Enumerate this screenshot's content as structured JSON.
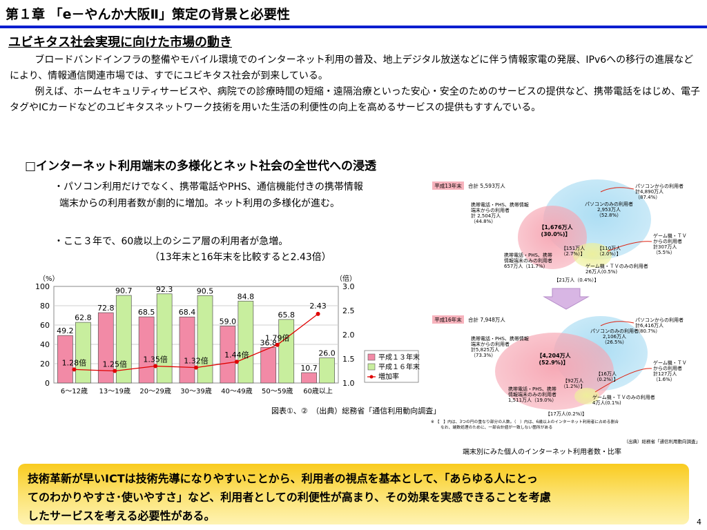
{
  "header": {
    "chapter": "第１章 「e－やんか大阪Ⅱ」策定の背景と必要性",
    "section_title": "ユビキタス社会実現に向けた市場の動き"
  },
  "intro": {
    "para1": "ブロードバンドインフラの整備やモバイル環境でのインターネット利用の普及、地上デジタル放送などに伴う情報家電の発展、IPv6への移行の進展などにより、情報通信関連市場では、すでにユビキタス社会が到来している。",
    "para2": "例えば、ホームセキュリティサービスや、病院での診療時間の短縮・遠隔治療といった安心・安全のためのサービスの提供など、携帯電話をはじめ、電子タグやICカードなどのユビキタスネットワーク技術を用いた生活の利便性の向上を高めるサービスの提供もすすんでいる。"
  },
  "subhead": "□インターネット利用端末の多様化とネット社会の全世代への浸透",
  "bullets": {
    "b1_line1": "・パソコン利用だけでなく、携帯電話やPHS、通信機能付きの携帯情報",
    "b1_line2": "端末からの利用者数が劇的に増加。ネット利用の多様化が進む。",
    "b2_line1": "・ここ３年で、60歳以上のシニア層の利用者が急増。",
    "b2_line2": "（13年末と16年末を比較すると2.43倍）"
  },
  "chart_caption": "図表①、②　（出典）総務省「通信利用動向調査」",
  "chart_data": {
    "type": "bar",
    "categories": [
      "6～12歳",
      "13～19歳",
      "20～29歳",
      "30～39歳",
      "40～49歳",
      "50～59歳",
      "60歳以上"
    ],
    "series": [
      {
        "name": "平成１３年末",
        "values": [
          49.2,
          72.8,
          68.5,
          68.4,
          59.0,
          36.8,
          10.7
        ],
        "labels": [
          "49.2",
          "72.8",
          "68.5",
          "68.4",
          "59.0",
          "36.8",
          "10.7"
        ],
        "color": "#f28aa6"
      },
      {
        "name": "平成１６年末",
        "values": [
          62.8,
          90.7,
          92.3,
          90.5,
          84.8,
          65.8,
          26.0
        ],
        "labels": [
          "62.8",
          "90.7",
          "92.3",
          "90.5",
          "84.8",
          "65.8",
          "26.0"
        ],
        "color": "#c8ee9e"
      },
      {
        "name": "増加率",
        "values": [
          1.28,
          1.25,
          1.35,
          1.32,
          1.44,
          1.79,
          2.43
        ],
        "labels": [
          "1.28倍",
          "1.25倍",
          "1.35倍",
          "1.32倍",
          "1.44倍",
          "1.79倍",
          "2.43"
        ],
        "color": "#e00000",
        "axis": "right"
      }
    ],
    "left_unit": "（%）",
    "right_unit": "（倍）",
    "ylim": [
      0,
      100
    ],
    "y2lim": [
      1.0,
      3.0
    ],
    "yticks": [
      "0",
      "20",
      "40",
      "60",
      "80",
      "100"
    ],
    "y2ticks": [
      "1.0",
      "1.5",
      "2.0",
      "2.5",
      "3.0"
    ],
    "grid": true,
    "legend_position": "lower-right"
  },
  "venn": {
    "caption": "端末別にみた個人のインターネット利用者数・比率",
    "source": "（出典）総務省「通信利用動向調査」",
    "note_line1": "※ 【　】内は、3つの円の重なり部分の人数。（　）内は、6歳以上のインターネット利用者に占める割合",
    "note_line2": "なお、端数処理のために、一部合計値が一致しない箇所がある",
    "h13": {
      "tag": "平成13年末",
      "total": "合計 5,593万人",
      "pc_total": [
        "パソコンからの利用者",
        "計4,890万人",
        "（87.4%）"
      ],
      "mobile_total": [
        "携帯電話・PHS、携帯情報",
        "端末からの利用者",
        "計 2,504万人",
        "（44.8%）"
      ],
      "game_total": [
        "ゲーム機・ＴＶ",
        "からの利用者",
        "計307万人",
        "（5.5%）"
      ],
      "pc_only": [
        "パソコンのみの利用者",
        "2,953万人",
        "（52.8%）"
      ],
      "mobile_only": [
        "携帯電話・PHS、携帯",
        "情報端末のみの利用者",
        "657万人（11.7%）"
      ],
      "game_only": [
        "ゲーム機・ＴＶのみの利用者",
        "26万人(0.5%)"
      ],
      "center": [
        "【1,676万人",
        "(30.0%)】"
      ],
      "mg": [
        "【151万人",
        "（2.7%）】"
      ],
      "pg": [
        "【110万人",
        "（2.0%）】"
      ],
      "all": "【21万人（0.4%）】"
    },
    "h16": {
      "tag": "平成16年末",
      "total": "合計 7,948万人",
      "pc_total": [
        "パソコンからの利用者",
        "計6,416万人",
        "（80.7%）"
      ],
      "mobile_total": [
        "携帯電話・PHS、携帯情報",
        "端末からの利用者",
        "計5,825万人",
        "（73.3%）"
      ],
      "game_total": [
        "ゲーム機・ＴＶ",
        "からの利用者",
        "計127万人",
        "（1.6%）"
      ],
      "pc_only": [
        "パソコンのみの利用者",
        "2,106万人",
        "（26.5%）"
      ],
      "mobile_only": [
        "携帯電話・PHS、携帯",
        "情報端末のみの利用者",
        "1,511万人（19.0%）"
      ],
      "game_only": [
        "ゲーム機・ＴＶのみの利用者",
        "4万人(0.1%)"
      ],
      "center": [
        "【4,204万人",
        "(52.9%)】"
      ],
      "mg": [
        "【92万人",
        "（1.2%）】"
      ],
      "pg": [
        "【16万人",
        "（0.2%）】"
      ],
      "all": "【17万人(0.2%)】"
    }
  },
  "callout": {
    "line1": "技術革新が早いICTは技術先導になりやすいことから、利用者の視点を基本として、「あらゆる人にとっ",
    "line2": "てのわかりやすさ･使いやすさ」など、利用者としての利便性が高まり、その効果を実感できることを考慮",
    "line3": "したサービスを考える必要性がある。"
  },
  "page_number": "4"
}
